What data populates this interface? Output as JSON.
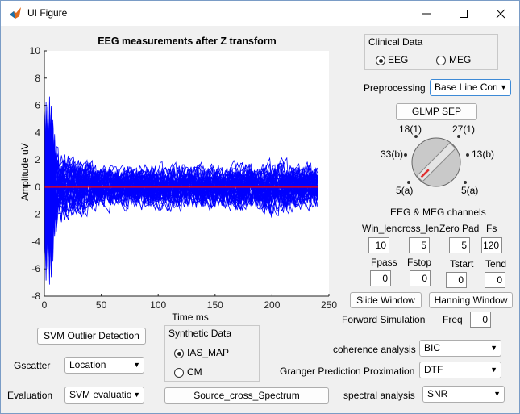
{
  "window": {
    "title": "UI Figure"
  },
  "chart_data": {
    "type": "line",
    "title": "EEG measurements after Z transform",
    "xlabel": "Time ms",
    "ylabel": "Amplitude uV",
    "xlim": [
      0,
      250
    ],
    "ylim": [
      -8,
      10
    ],
    "x_ticks": [
      "0",
      "50",
      "100",
      "150",
      "200",
      "250"
    ],
    "y_ticks": [
      "10",
      "8",
      "6",
      "4",
      "2",
      "0",
      "-2",
      "-4",
      "-6",
      "-8"
    ],
    "series": [
      {
        "color": "#0000ff",
        "description_range": [
          -3.5,
          3.8
        ],
        "x": [
          0,
          5,
          10,
          20,
          50,
          100,
          150,
          200,
          240
        ],
        "upper": [
          7.2,
          8.0,
          3.0,
          2.6,
          1.8,
          2.0,
          1.8,
          2.3,
          1.8
        ],
        "lower": [
          -7.0,
          -7.9,
          -4.0,
          -3.2,
          -2.2,
          -2.4,
          -2.2,
          -2.8,
          -2.3
        ]
      },
      {
        "color": "#ff0000",
        "values_x": [
          0,
          240
        ],
        "values_y": [
          0,
          0
        ]
      }
    ]
  },
  "clinical": {
    "title": "Clinical Data",
    "options": [
      "EEG",
      "MEG"
    ],
    "selected": "EEG"
  },
  "preprocessing": {
    "label": "Preprocessing",
    "value": "Base Line Corr"
  },
  "glmp_button": "GLMP SEP",
  "knob": {
    "labels": [
      "18(1)",
      "27(1)",
      "33(b)",
      "13(b)",
      "5(a)",
      "5(a)"
    ],
    "caption": "EEG & MEG channels"
  },
  "params": {
    "win_len": {
      "label": "Win_len",
      "value": "10"
    },
    "cross_len": {
      "label": "cross_len",
      "value": "5"
    },
    "zero_pad": {
      "label": "Zero Pad",
      "value": "5"
    },
    "fs": {
      "label": "Fs",
      "value": "120"
    },
    "fpass": {
      "label": "Fpass",
      "value": "0"
    },
    "fstop": {
      "label": "Fstop",
      "value": "0"
    },
    "tstart": {
      "label": "Tstart",
      "value": "0"
    },
    "tend": {
      "label": "Tend",
      "value": "0"
    }
  },
  "slide_window": "Slide Window",
  "hanning_window": "Hanning Window",
  "forward_sim": "Forward Simulation",
  "freq": {
    "label": "Freq",
    "value": "0"
  },
  "svm_button": "SVM Outlier Detection",
  "synthetic": {
    "title": "Synthetic Data",
    "options": [
      "IAS_MAP",
      "CM"
    ],
    "selected": "IAS_MAP"
  },
  "gscatter": {
    "label": "Gscatter",
    "value": "Location"
  },
  "evaluation": {
    "label": "Evaluation",
    "value": "SVM evaluation"
  },
  "source_button": "Source_cross_Spectrum",
  "coherence": {
    "label": "coherence analysis",
    "value": "BIC"
  },
  "granger": {
    "label": "Granger Prediction Proximation",
    "value": "DTF"
  },
  "spectral": {
    "label": "spectral analysis",
    "value": "SNR"
  }
}
